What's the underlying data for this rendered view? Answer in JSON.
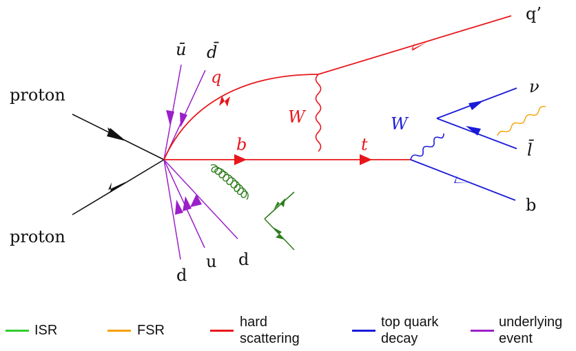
{
  "colors": {
    "isr": "#2ecc2e",
    "fsr": "#f5a000",
    "hard": "#e8161b",
    "top_decay": "#1a1ad9",
    "underlying": "#9a20c8",
    "black": "#111111",
    "gluon_green": "#2f7d1e"
  },
  "labels": {
    "proton_top": "proton",
    "proton_bottom": "proton",
    "ubar": "ū",
    "dbar": "d̄",
    "q": "q",
    "w_hard": "W",
    "b_hard": "b",
    "t": "t",
    "qprime": "q’",
    "w_decay": "W",
    "nu": "ν",
    "lbar": "l̄",
    "b_decay": "b",
    "d1": "d",
    "u": "u",
    "d2": "d"
  },
  "legend": [
    {
      "label": "ISR",
      "color": "#2ecc2e"
    },
    {
      "label": "FSR",
      "color": "#f5a000"
    },
    {
      "label": "hard\nscattering",
      "color": "#e8161b"
    },
    {
      "label": "top quark\ndecay",
      "color": "#1a1ad9"
    },
    {
      "label": "underlying\nevent",
      "color": "#9a20c8"
    }
  ]
}
